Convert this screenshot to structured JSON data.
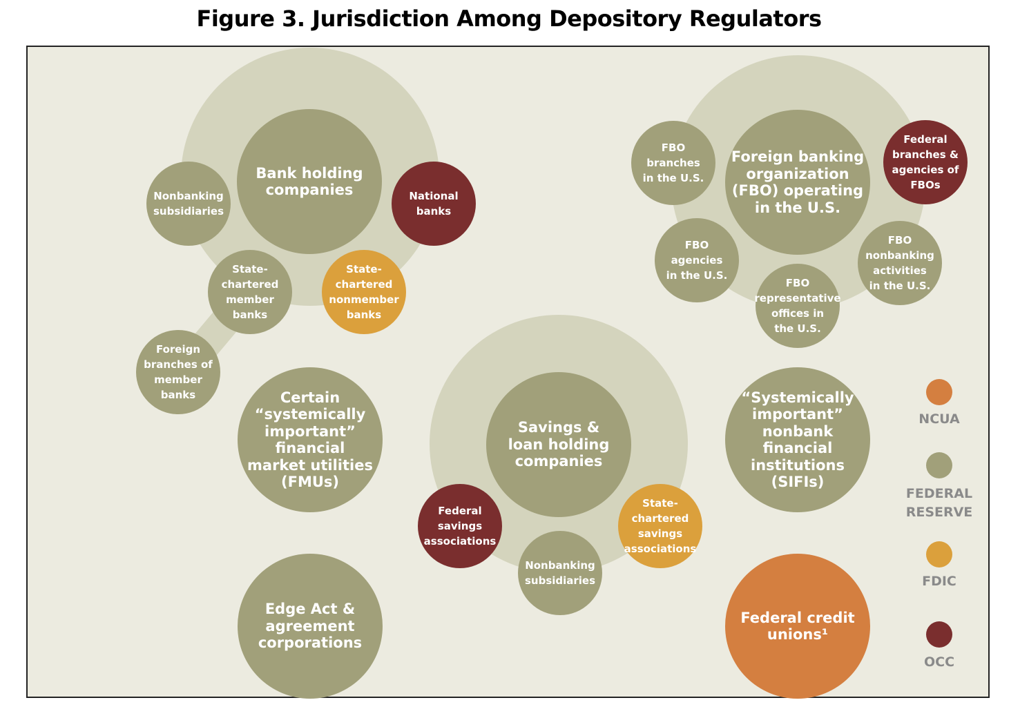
{
  "title": "Figure 3. Jurisdiction Among Depository Regulators",
  "colors": {
    "background": "#ecebe0",
    "halo": "#d4d4bd",
    "federal_reserve": "#a1a07a",
    "occ": "#7a2e2e",
    "fdic": "#dba03c",
    "ncua": "#d47f40"
  },
  "groups": {
    "bank_holding": {
      "center": "Bank holding\ncompanies",
      "nonbanking": "Nonbanking\nsubsidiaries",
      "national": "National\nbanks",
      "member": "State-\nchartered\nmember\nbanks",
      "nonmember": "State-\nchartered\nnonmember\nbanks",
      "foreign_branches": "Foreign\nbranches of\nmember\nbanks"
    },
    "fbo": {
      "center": "Foreign banking\norganization\n(FBO) operating\nin the U.S.",
      "branches": "FBO\nbranches\nin the U.S.",
      "federal_branches": "Federal\nbranches &\nagencies of\nFBOs",
      "agencies": "FBO\nagencies\nin the U.S.",
      "representative": "FBO\nrepresentative\noffices in\nthe U.S.",
      "nonbanking": "FBO\nnonbanking\nactivities\nin the U.S."
    },
    "savings_loan": {
      "center": "Savings &\nloan holding\ncompanies",
      "federal_savings": "Federal\nsavings\nassociations",
      "state_savings": "State-\nchartered\nsavings\nassociations",
      "nonbanking": "Nonbanking\nsubsidiaries"
    },
    "standalone": {
      "fmu": "Certain\n“systemically\nimportant”\nfinancial\nmarket utilities\n(FMUs)",
      "edge": "Edge Act &\nagreement\ncorporations",
      "sifi": "“Systemically\nimportant”\nnonbank\nfinancial\ninstitutions\n(SIFIs)",
      "credit_unions": "Federal credit\nunions¹"
    }
  },
  "legend": [
    {
      "label": "NCUA",
      "color": "#d47f40"
    },
    {
      "label": "FEDERAL\nRESERVE",
      "color": "#a1a07a"
    },
    {
      "label": "FDIC",
      "color": "#dba03c"
    },
    {
      "label": "OCC",
      "color": "#7a2e2e"
    }
  ]
}
